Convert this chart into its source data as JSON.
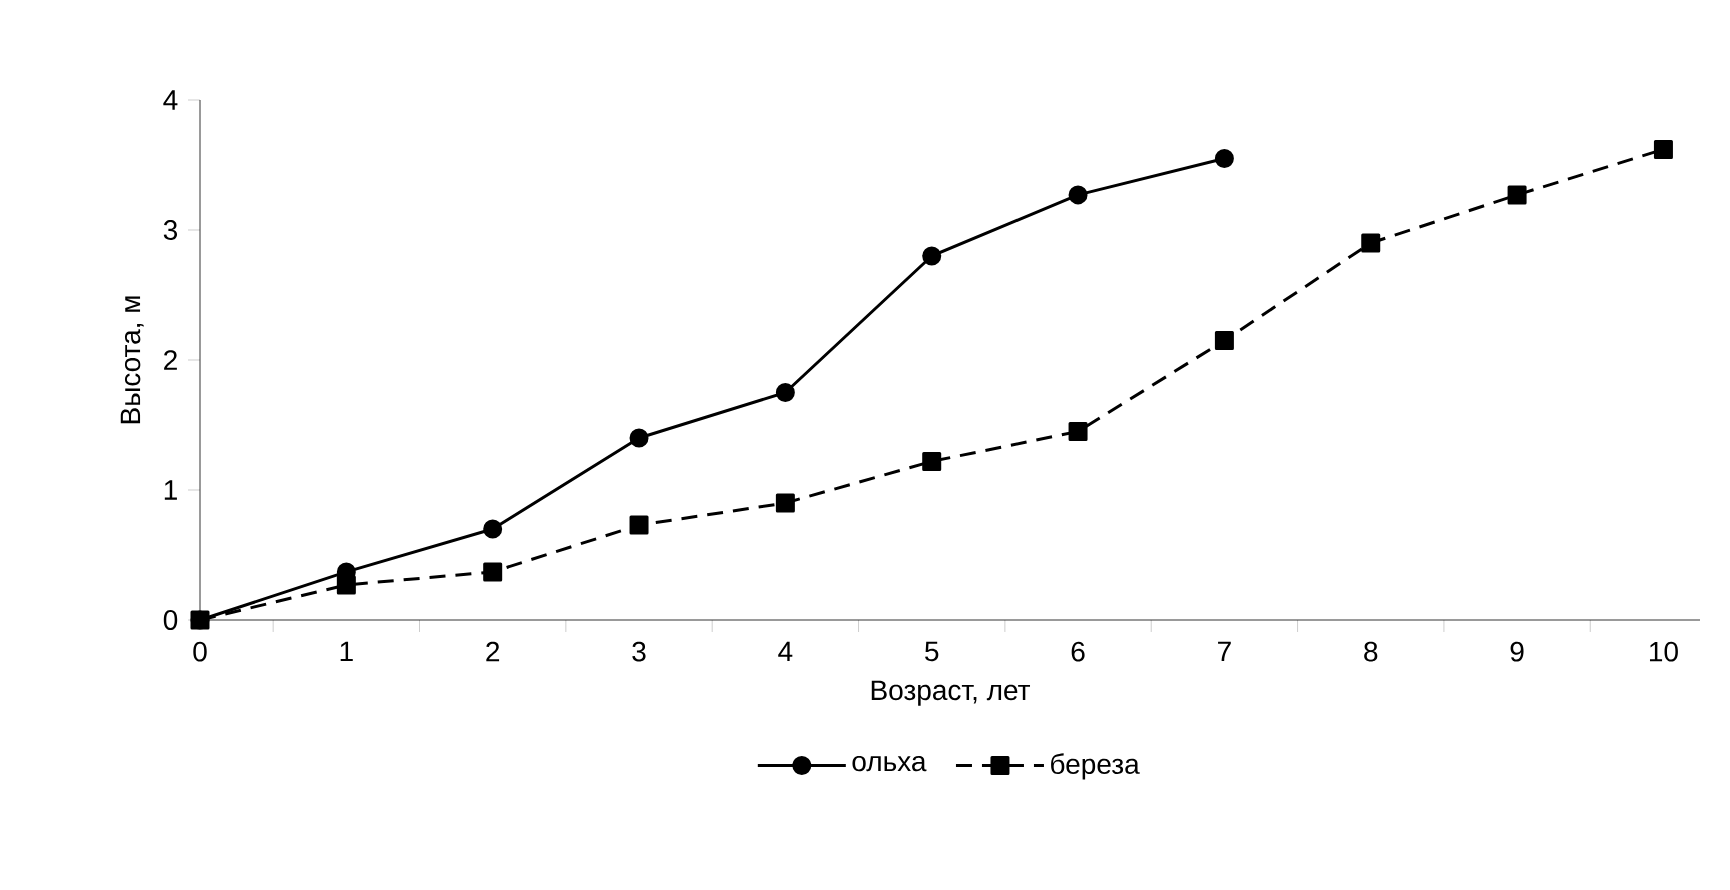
{
  "chart_data": {
    "type": "line",
    "xlabel": "Возраст, лет",
    "ylabel": "Высота, м",
    "categories": [
      "0",
      "1",
      "2",
      "3",
      "4",
      "5",
      "6",
      "7",
      "8",
      "9",
      "10"
    ],
    "series": [
      {
        "name": "ольха",
        "color": "#000000",
        "marker": "circle",
        "line_style": "solid",
        "values": [
          0,
          0.37,
          0.7,
          1.4,
          1.75,
          2.8,
          3.27,
          3.55,
          null,
          null,
          null
        ]
      },
      {
        "name": "береза",
        "color": "#000000",
        "marker": "square",
        "line_style": "dashed",
        "values": [
          0,
          0.27,
          0.37,
          0.73,
          0.9,
          1.22,
          1.45,
          2.15,
          2.9,
          3.27,
          3.62
        ]
      }
    ],
    "ylim": [
      0,
      4
    ],
    "yticks": [
      0,
      1,
      2,
      3,
      4
    ],
    "grid": false,
    "legend": "bottom"
  }
}
